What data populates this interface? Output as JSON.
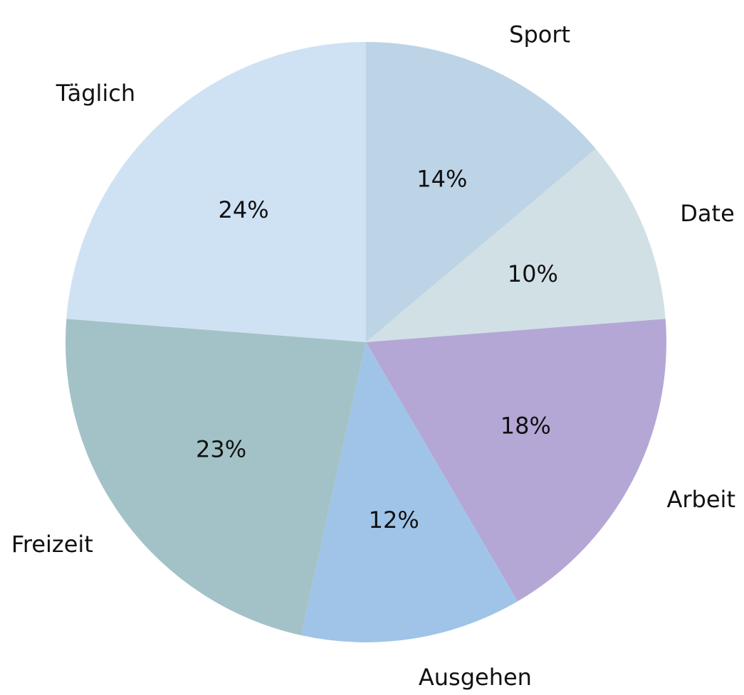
{
  "chart_data": {
    "type": "pie",
    "start_angle_deg": 90,
    "direction": "clockwise",
    "slices": [
      {
        "label": "Sport",
        "value": 14,
        "pct_label": "14%",
        "color": "#bdd3e6"
      },
      {
        "label": "Date",
        "value": 10,
        "pct_label": "10%",
        "color": "#d1e0e5"
      },
      {
        "label": "Arbeit",
        "value": 18,
        "pct_label": "18%",
        "color": "#b4a7d6"
      },
      {
        "label": "Ausgehen",
        "value": 12,
        "pct_label": "12%",
        "color": "#a0c4e8"
      },
      {
        "label": "Freizeit",
        "value": 23,
        "pct_label": "23%",
        "color": "#a3c2c7"
      },
      {
        "label": "Täglich",
        "value": 24,
        "pct_label": "24%",
        "color": "#cfe2f3"
      }
    ]
  }
}
